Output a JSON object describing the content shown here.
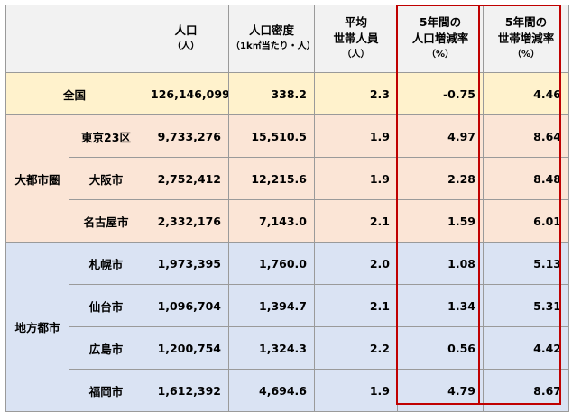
{
  "header": {
    "population": "人口",
    "population_unit": "（人）",
    "density": "人口密度",
    "density_unit": "（1k㎡当たり・人）",
    "household_l1": "平均",
    "household_l2": "世帯人員",
    "household_unit": "（人）",
    "pop_change_l1": "5年間の",
    "pop_change_l2": "人口増減率",
    "pop_change_unit": "（%）",
    "hh_change_l1": "5年間の",
    "hh_change_l2": "世帯増減率",
    "hh_change_unit": "（%）"
  },
  "national": {
    "label": "全国",
    "population": "126,146,099",
    "density": "338.2",
    "household": "2.3",
    "pop_change": "-0.75",
    "hh_change": "4.46"
  },
  "groups": [
    {
      "label": "大都市圏",
      "rows": [
        {
          "city": "東京23区",
          "population": "9,733,276",
          "density": "15,510.5",
          "household": "1.9",
          "pop_change": "4.97",
          "hh_change": "8.64"
        },
        {
          "city": "大阪市",
          "population": "2,752,412",
          "density": "12,215.6",
          "household": "1.9",
          "pop_change": "2.28",
          "hh_change": "8.48"
        },
        {
          "city": "名古屋市",
          "population": "2,332,176",
          "density": "7,143.0",
          "household": "2.1",
          "pop_change": "1.59",
          "hh_change": "6.01"
        }
      ]
    },
    {
      "label": "地方都市",
      "rows": [
        {
          "city": "札幌市",
          "population": "1,973,395",
          "density": "1,760.0",
          "household": "2.0",
          "pop_change": "1.08",
          "hh_change": "5.13"
        },
        {
          "city": "仙台市",
          "population": "1,096,704",
          "density": "1,394.7",
          "household": "2.1",
          "pop_change": "1.34",
          "hh_change": "5.31"
        },
        {
          "city": "広島市",
          "population": "1,200,754",
          "density": "1,324.3",
          "household": "2.2",
          "pop_change": "0.56",
          "hh_change": "4.42"
        },
        {
          "city": "福岡市",
          "population": "1,612,392",
          "density": "4,694.6",
          "household": "1.9",
          "pop_change": "4.79",
          "hh_change": "8.67"
        }
      ]
    }
  ],
  "highlight_color": "#c00000"
}
